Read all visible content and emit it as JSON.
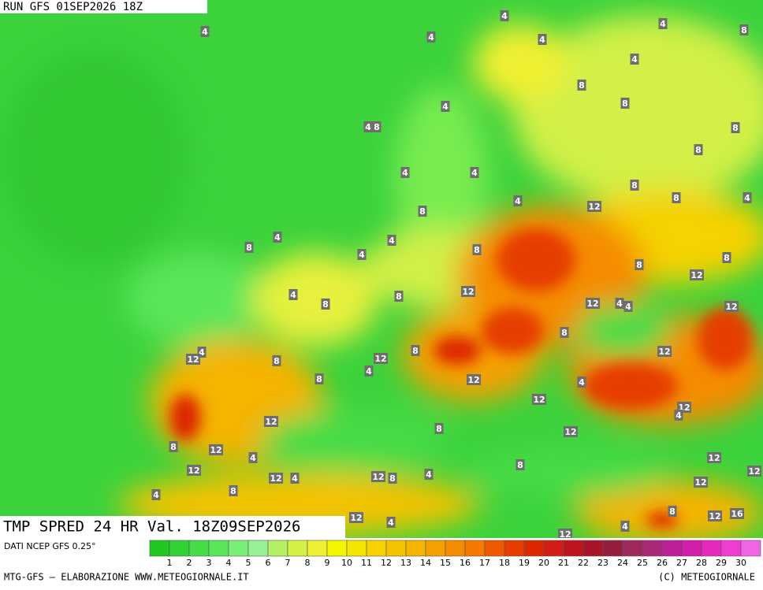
{
  "header": {
    "run": "RUN GFS 01SEP2026 18Z"
  },
  "map": {
    "title": "TMP SPRED 24 HR Val. 18Z09SEP2026",
    "contour_labels": [
      4,
      4,
      8,
      4,
      4,
      4,
      4,
      8,
      8,
      4,
      4,
      8,
      8,
      8,
      4,
      4,
      8,
      8,
      4,
      4,
      12,
      8,
      4,
      4,
      8,
      4,
      8,
      8,
      8,
      12,
      12,
      8,
      4,
      8,
      12,
      4,
      4,
      12,
      8,
      12,
      4,
      12,
      8,
      12,
      8,
      4,
      8,
      12,
      4,
      12,
      12,
      12,
      4,
      8,
      12,
      8,
      12,
      4,
      12,
      8,
      12,
      12,
      4,
      4,
      12,
      8,
      12,
      12,
      4,
      8,
      8,
      12,
      4,
      12,
      16,
      4,
      12
    ]
  },
  "legend": {
    "source": "DATI NCEP GFS 0.25°",
    "values": [
      1,
      2,
      3,
      4,
      5,
      6,
      7,
      8,
      9,
      10,
      11,
      12,
      13,
      14,
      15,
      16,
      17,
      18,
      19,
      20,
      21,
      22,
      23,
      24,
      25,
      26,
      27,
      28,
      29,
      30
    ],
    "colors": [
      "#1ec81e",
      "#32d232",
      "#46dc46",
      "#5ae65a",
      "#78f078",
      "#96f096",
      "#b4f064",
      "#d2f046",
      "#f0f032",
      "#f5f500",
      "#f5e600",
      "#f5d200",
      "#f5c300",
      "#f5b400",
      "#f5a000",
      "#f58c00",
      "#f57800",
      "#f05a00",
      "#e63c00",
      "#dc2800",
      "#d21e14",
      "#be141e",
      "#aa1428",
      "#961e3c",
      "#a0285a",
      "#aa2878",
      "#be1e96",
      "#d21eaa",
      "#e628be",
      "#f03cd2",
      "#f064e6"
    ]
  },
  "footer": {
    "left": "MTG-GFS — ELABORAZIONE WWW.METEOGIORNALE.IT",
    "right": "(C) METEOGIORNALE"
  }
}
